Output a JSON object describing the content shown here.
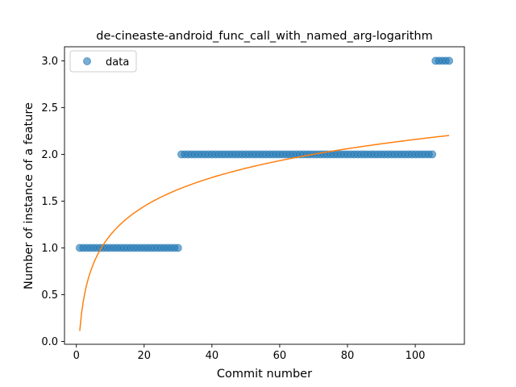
{
  "chart_data": {
    "type": "scatter",
    "title": "de-cineaste-android_func_call_with_named_arg-logarithm",
    "xlabel": "Commit number",
    "ylabel": "Number of instance of a feature",
    "xlim": [
      -3.5,
      114.5
    ],
    "ylim": [
      -0.03,
      3.15
    ],
    "xticks": [
      0,
      20,
      40,
      60,
      80,
      100
    ],
    "yticks": [
      0.0,
      0.5,
      1.0,
      1.5,
      2.0,
      2.5,
      3.0
    ],
    "xtick_labels": [
      "0",
      "20",
      "40",
      "60",
      "80",
      "100"
    ],
    "ytick_labels": [
      "0.0",
      "0.5",
      "1.0",
      "1.5",
      "2.0",
      "2.5",
      "3.0"
    ],
    "grid": false,
    "legend_position": "upper-left",
    "series": [
      {
        "name": "data",
        "kind": "scatter",
        "color": "#1f77b4",
        "segments": [
          {
            "x_start": 1,
            "x_end": 30,
            "y": 1
          },
          {
            "x_start": 31,
            "x_end": 105,
            "y": 2
          },
          {
            "x_start": 106,
            "x_end": 110,
            "y": 3
          }
        ]
      },
      {
        "kind": "line",
        "color": "#ff7f0e",
        "fit": {
          "model": "logarithm",
          "a": 0.1125,
          "b": 0.4445,
          "x_start": 1,
          "x_end": 110
        }
      }
    ]
  }
}
